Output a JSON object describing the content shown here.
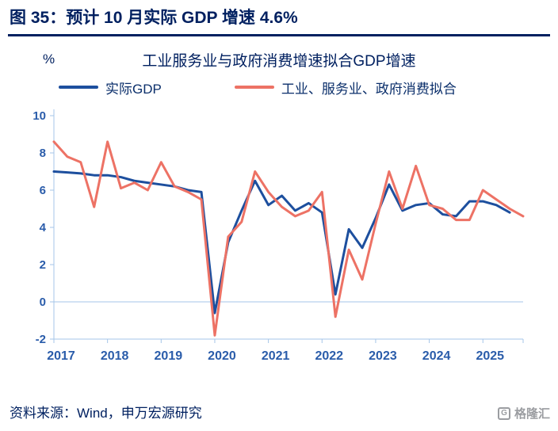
{
  "header": {
    "title": "图 35：预计 10 月实际 GDP 增速 4.6%"
  },
  "chart": {
    "unit_label": "%",
    "subtitle": "工业服务业与政府消费增速拟合GDP增速",
    "legend": [
      {
        "label": "实际GDP",
        "color": "#1d4f9e"
      },
      {
        "label": "工业、服务业、政府消费拟合",
        "color": "#ed7265"
      }
    ]
  },
  "chart_data": {
    "type": "line",
    "title": "工业服务业与政府消费增速拟合GDP增速",
    "xlabel": "",
    "ylabel": "%",
    "ylim": [
      -2,
      10
    ],
    "yticks": [
      -2,
      0,
      2,
      4,
      6,
      8,
      10
    ],
    "x_tick_labels": [
      "2017",
      "2018",
      "2019",
      "2020",
      "2021",
      "2022",
      "2023",
      "2024",
      "2025"
    ],
    "points_per_label": 4,
    "frequency": "quarterly",
    "grid": "zero-line-only",
    "legend_position": "top",
    "axis_color": "#a5c5e8",
    "tick_label_color": "#2a5caa",
    "series": [
      {
        "name": "实际GDP",
        "color": "#1d4f9e",
        "values": [
          7.0,
          6.95,
          6.9,
          6.8,
          6.8,
          6.7,
          6.5,
          6.4,
          6.3,
          6.2,
          6.0,
          5.9,
          -0.6,
          3.2,
          4.9,
          6.5,
          5.2,
          5.7,
          4.9,
          5.3,
          4.8,
          0.4,
          3.9,
          2.9,
          4.5,
          6.3,
          4.9,
          5.2,
          5.3,
          4.7,
          4.6,
          5.4,
          5.4,
          5.2,
          4.8
        ]
      },
      {
        "name": "工业、服务业、政府消费拟合",
        "color": "#ed7265",
        "values": [
          8.6,
          7.8,
          7.5,
          5.1,
          8.6,
          6.1,
          6.4,
          6.0,
          7.5,
          6.2,
          5.9,
          5.5,
          -1.8,
          3.5,
          4.3,
          7.0,
          5.9,
          5.1,
          4.6,
          4.9,
          5.9,
          -0.8,
          2.8,
          1.2,
          4.2,
          7.0,
          5.0,
          7.3,
          5.2,
          5.0,
          4.4,
          4.4,
          6.0,
          5.5,
          5.0,
          4.6
        ]
      }
    ]
  },
  "footer": {
    "source": "资料来源：Wind，申万宏源研究",
    "logo_text": "格隆汇",
    "logo_initial": "G"
  }
}
